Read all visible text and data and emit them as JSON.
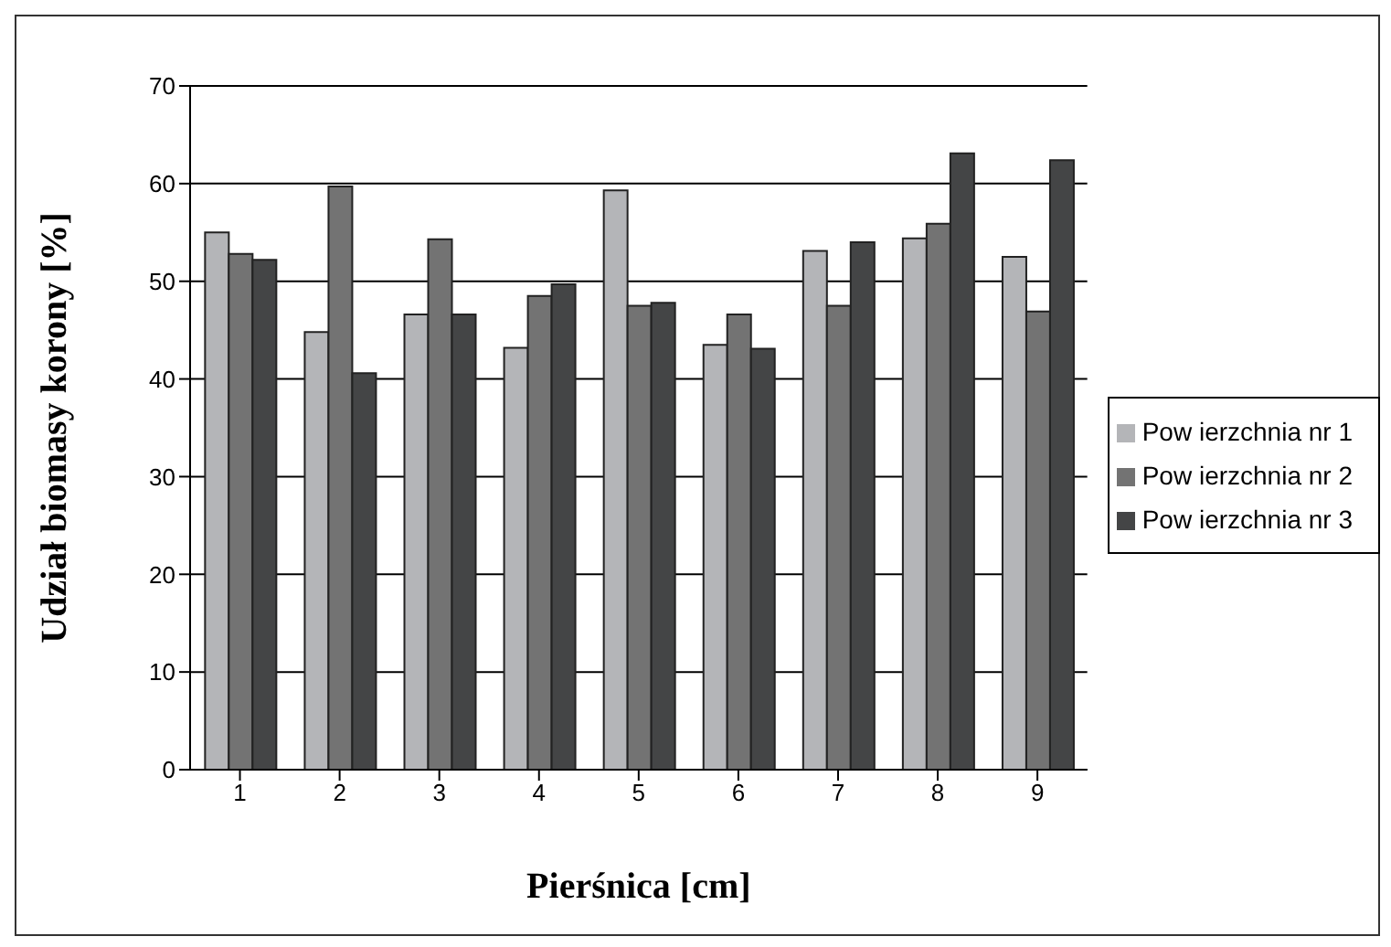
{
  "chart_data": {
    "type": "bar",
    "xlabel": "Pierśnica [cm]",
    "ylabel": "Udział biomasy korony [%]",
    "categories": [
      "1",
      "2",
      "3",
      "4",
      "5",
      "6",
      "7",
      "8",
      "9"
    ],
    "series": [
      {
        "name": "Pow ierzchnia nr 1",
        "color": "#b4b5b8",
        "values": [
          55,
          44.8,
          46.6,
          43.2,
          59.3,
          43.5,
          53.1,
          54.4,
          52.5
        ]
      },
      {
        "name": "Pow ierzchnia nr 2",
        "color": "#737373",
        "values": [
          52.8,
          59.7,
          54.3,
          48.5,
          47.5,
          46.6,
          47.5,
          55.9,
          46.9
        ]
      },
      {
        "name": "Pow ierzchnia nr 3",
        "color": "#444546",
        "values": [
          52.2,
          40.6,
          46.6,
          49.7,
          47.8,
          43.1,
          54,
          63.1,
          62.4
        ]
      }
    ],
    "ylim": [
      0,
      70
    ],
    "yticks": [
      0,
      10,
      20,
      30,
      40,
      50,
      60,
      70
    ],
    "grid": "y",
    "legend": "right"
  }
}
